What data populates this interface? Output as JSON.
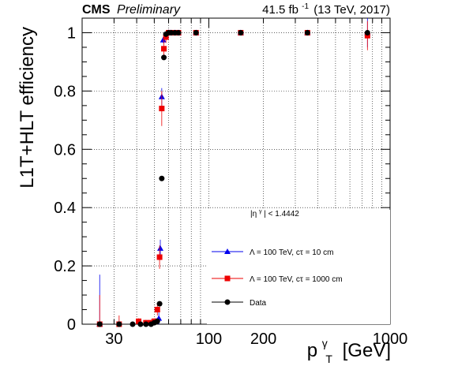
{
  "header": {
    "experiment": "CMS",
    "status": "Preliminary",
    "lumi_value": "41.5 fb",
    "lumi_exponent": "-1",
    "lumi_conditions": "(13 TeV, 2017)"
  },
  "chart_data": {
    "type": "scatter",
    "xlabel": "p",
    "xlabel_super": "γ",
    "xlabel_sub": "T",
    "xlabel_unit": "[GeV]",
    "ylabel": "L1T+HLT efficiency",
    "x_scale": "log",
    "xlim": [
      20,
      1000
    ],
    "ylim": [
      0,
      1.05
    ],
    "x_ticks": [
      30,
      100,
      200,
      1000
    ],
    "y_ticks": [
      0,
      0.2,
      0.4,
      0.6,
      0.8,
      1
    ],
    "grid": true,
    "legend_position": "bottom-right",
    "legend_title": "|η",
    "legend_title_super": "γ",
    "legend_title_rest": "| < 1.4442",
    "series": [
      {
        "name": "Λ = 100 TeV, cτ = 10 cm",
        "marker": "triangle",
        "color": "#0000ee",
        "points": [
          {
            "x": 25,
            "y": 0.0,
            "err": 0.17
          },
          {
            "x": 51,
            "y": 0.01,
            "err": 0.01
          },
          {
            "x": 53,
            "y": 0.02,
            "err": 0.02
          },
          {
            "x": 54,
            "y": 0.26,
            "err": 0.03
          },
          {
            "x": 55,
            "y": 0.78,
            "err": 0.03
          },
          {
            "x": 56,
            "y": 0.975,
            "err": 0.01
          },
          {
            "x": 58,
            "y": 0.99,
            "err": 0.01
          },
          {
            "x": 60,
            "y": 1.0,
            "err": 0.01
          },
          {
            "x": 62,
            "y": 1.0,
            "err": 0.005
          },
          {
            "x": 65,
            "y": 1.0,
            "err": 0.005
          },
          {
            "x": 68,
            "y": 1.0,
            "err": 0.005
          },
          {
            "x": 85,
            "y": 1.0,
            "err": 0.005
          },
          {
            "x": 150,
            "y": 1.0,
            "err": 0.005
          },
          {
            "x": 350,
            "y": 1.0,
            "err": 0.005
          },
          {
            "x": 750,
            "y": 1.0,
            "err": 0.05
          }
        ]
      },
      {
        "name": "Λ = 100 TeV, cτ = 1000 cm",
        "marker": "square",
        "color": "#ee0000",
        "points": [
          {
            "x": 25,
            "y": 0.0,
            "err": 0.1
          },
          {
            "x": 32,
            "y": 0.0,
            "err": 0.03
          },
          {
            "x": 41,
            "y": 0.01,
            "err": 0.01
          },
          {
            "x": 45,
            "y": 0.005,
            "err": 0.01
          },
          {
            "x": 48,
            "y": 0.005,
            "err": 0.01
          },
          {
            "x": 50,
            "y": 0.01,
            "err": 0.01
          },
          {
            "x": 52,
            "y": 0.05,
            "err": 0.02
          },
          {
            "x": 53.5,
            "y": 0.23,
            "err": 0.04
          },
          {
            "x": 55,
            "y": 0.74,
            "err": 0.06
          },
          {
            "x": 56.5,
            "y": 0.945,
            "err": 0.03
          },
          {
            "x": 58,
            "y": 0.985,
            "err": 0.02
          },
          {
            "x": 60,
            "y": 1.0,
            "err": 0.01
          },
          {
            "x": 62,
            "y": 1.0,
            "err": 0.005
          },
          {
            "x": 65,
            "y": 1.0,
            "err": 0.005
          },
          {
            "x": 68,
            "y": 1.0,
            "err": 0.005
          },
          {
            "x": 85,
            "y": 1.0,
            "err": 0.005
          },
          {
            "x": 150,
            "y": 1.0,
            "err": 0.005
          },
          {
            "x": 350,
            "y": 1.0,
            "err": 0.005
          },
          {
            "x": 750,
            "y": 0.99,
            "err": 0.05
          }
        ]
      },
      {
        "name": "Data",
        "marker": "circle",
        "color": "#000000",
        "points": [
          {
            "x": 25,
            "y": 0.0,
            "err": 0.005
          },
          {
            "x": 32,
            "y": 0.0,
            "err": 0.005
          },
          {
            "x": 38,
            "y": 0.0,
            "err": 0.005
          },
          {
            "x": 42,
            "y": 0.0,
            "err": 0.005
          },
          {
            "x": 45,
            "y": 0.0,
            "err": 0.005
          },
          {
            "x": 48,
            "y": 0.0,
            "err": 0.005
          },
          {
            "x": 50,
            "y": 0.005,
            "err": 0.005
          },
          {
            "x": 52,
            "y": 0.01,
            "err": 0.005
          },
          {
            "x": 53.5,
            "y": 0.07,
            "err": 0.005
          },
          {
            "x": 55,
            "y": 0.5,
            "err": 0.005
          },
          {
            "x": 56.5,
            "y": 0.915,
            "err": 0.005
          },
          {
            "x": 58,
            "y": 0.995,
            "err": 0.005
          },
          {
            "x": 60,
            "y": 1.0,
            "err": 0.002
          },
          {
            "x": 62,
            "y": 1.0,
            "err": 0.002
          },
          {
            "x": 65,
            "y": 1.0,
            "err": 0.002
          },
          {
            "x": 68,
            "y": 1.0,
            "err": 0.002
          },
          {
            "x": 85,
            "y": 1.0,
            "err": 0.002
          },
          {
            "x": 150,
            "y": 1.0,
            "err": 0.002
          },
          {
            "x": 350,
            "y": 1.0,
            "err": 0.002
          },
          {
            "x": 750,
            "y": 1.0,
            "err": 0.002
          }
        ]
      }
    ]
  }
}
